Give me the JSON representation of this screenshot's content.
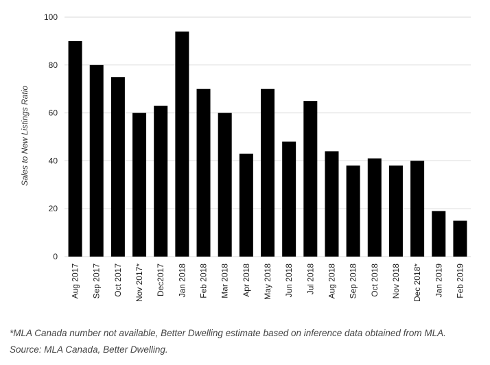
{
  "chart_data": {
    "type": "bar",
    "title": "",
    "xlabel": "",
    "ylabel": "Sales to New Listings Ratio",
    "ylim": [
      0,
      100
    ],
    "yticks": [
      0,
      20,
      40,
      60,
      80,
      100
    ],
    "grid": true,
    "bar_color": "#000000",
    "grid_color": "#d9d9d9",
    "categories": [
      "Aug 2017",
      "Sep 2017",
      "Oct 2017",
      "Nov 2017*",
      "Dec2017",
      "Jan 2018",
      "Feb 2018",
      "Mar 2018",
      "Apr 2018",
      "May 2018",
      "Jun 2018",
      "Jul 2018",
      "Aug 2018",
      "Sep 2018",
      "Oct 2018",
      "Nov 2018",
      "Dec 2018*",
      "Jan 2019",
      "Feb 2019"
    ],
    "values": [
      90,
      80,
      75,
      60,
      63,
      94,
      70,
      60,
      43,
      70,
      48,
      65,
      44,
      38,
      41,
      38,
      40,
      19,
      15
    ]
  },
  "footnotes": {
    "note": "*MLA Canada number not available, Better Dwelling estimate based on inference data obtained from MLA.",
    "source": "Source: MLA Canada, Better Dwelling."
  }
}
